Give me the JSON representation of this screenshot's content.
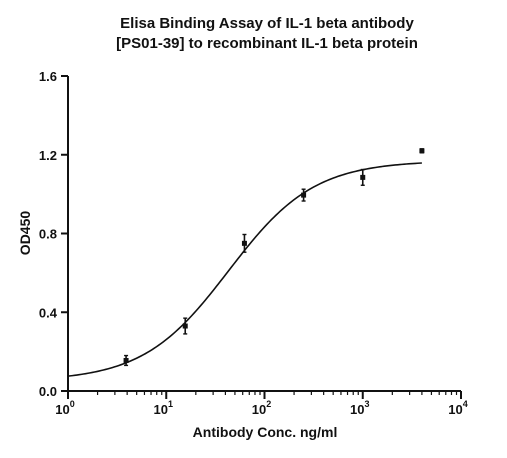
{
  "chart_data": {
    "type": "scatter",
    "title_lines": [
      "Elisa Binding Assay of IL-1 beta antibody",
      "[PS01-39] to recombinant IL-1 beta protein"
    ],
    "xlabel": "Antibody Conc. ng/ml",
    "ylabel": "OD450",
    "x_scale": "log",
    "xlim": [
      1,
      10000
    ],
    "ylim": [
      0,
      1.6
    ],
    "x_ticks": [
      {
        "value": 1,
        "base": "10",
        "exp": "0"
      },
      {
        "value": 10,
        "base": "10",
        "exp": "1"
      },
      {
        "value": 100,
        "base": "10",
        "exp": "2"
      },
      {
        "value": 1000,
        "base": "10",
        "exp": "3"
      },
      {
        "value": 10000,
        "base": "10",
        "exp": "4"
      }
    ],
    "y_ticks": [
      {
        "value": 0,
        "label": "0.0"
      },
      {
        "value": 0.4,
        "label": "0.4"
      },
      {
        "value": 0.8,
        "label": "0.8"
      },
      {
        "value": 1.2,
        "label": "1.2"
      },
      {
        "value": 1.6,
        "label": "1.6"
      }
    ],
    "grid": false,
    "colors": {
      "marker": "#111111",
      "curve": "#111111",
      "axis": "#111111"
    },
    "points": [
      {
        "x": 3.9,
        "y": 0.155,
        "err": 0.025
      },
      {
        "x": 15.6,
        "y": 0.33,
        "err": 0.04
      },
      {
        "x": 62.5,
        "y": 0.75,
        "err": 0.045
      },
      {
        "x": 250,
        "y": 0.995,
        "err": 0.03
      },
      {
        "x": 1000,
        "y": 1.085,
        "err": 0.04
      },
      {
        "x": 4000,
        "y": 1.22,
        "err": 0.01
      }
    ],
    "fit_curve": {
      "model": "4PL",
      "bottom": 0.05,
      "top": 1.17,
      "ec50": 43,
      "hill": 1.0,
      "x_range": [
        1,
        4000
      ]
    }
  }
}
